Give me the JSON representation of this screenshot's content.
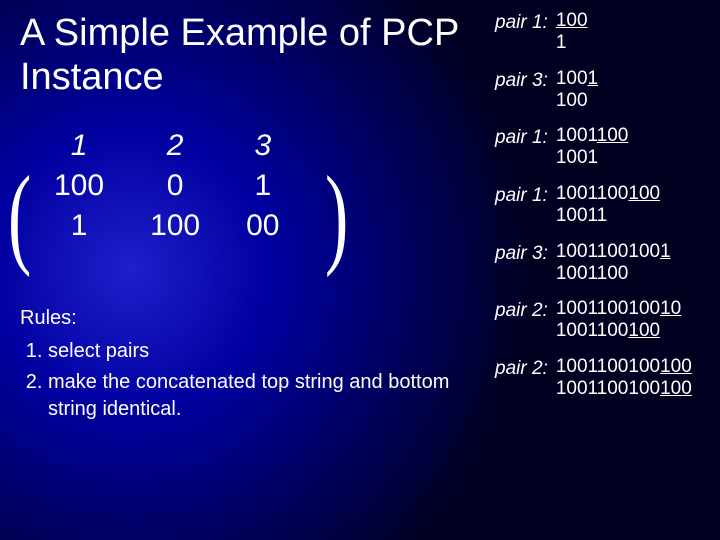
{
  "colors": {
    "background_center": "#2020cc",
    "background_edge": "#000020",
    "text": "#ffffff"
  },
  "title": "A Simple Example of PCP Instance",
  "table": {
    "header_fontstyle": "italic",
    "fontsize": 30,
    "columns": [
      "1",
      "2",
      "3"
    ],
    "rows": [
      [
        "100",
        "0",
        "1"
      ],
      [
        "1",
        "100",
        "00"
      ]
    ],
    "bracket_left": "(",
    "bracket_right": ")"
  },
  "rules": {
    "heading": "Rules:",
    "items": [
      "select pairs",
      "make the concatenated top string and bottom string identical."
    ],
    "fontsize": 20
  },
  "steps_fontsize": 19,
  "steps": [
    {
      "label": "pair 1:",
      "top_plain": "",
      "top_ul": "100",
      "bot_plain": "1",
      "bot_ul": ""
    },
    {
      "label": "pair 3:",
      "top_plain": "100",
      "top_ul": "1",
      "bot_plain": "100",
      "bot_ul": ""
    },
    {
      "label": "pair 1:",
      "top_plain": "1001",
      "top_ul": "100",
      "bot_plain": "1001",
      "bot_ul": ""
    },
    {
      "label": "pair 1:",
      "top_plain": "1001100",
      "top_ul": "100",
      "bot_plain": "10011",
      "bot_ul": ""
    },
    {
      "label": "pair 3:",
      "top_plain": "1001100100",
      "top_ul": "1",
      "bot_plain": "1001100",
      "bot_ul": ""
    },
    {
      "label": "pair 2:",
      "top_plain": "1001100100",
      "top_ul": "10",
      "bot_plain": "1001100",
      "bot_ul": "100"
    },
    {
      "label": "pair 2:",
      "top_plain": "1001100100",
      "top_ul": "100",
      "bot_plain": "1001100100",
      "bot_ul": "100"
    }
  ]
}
